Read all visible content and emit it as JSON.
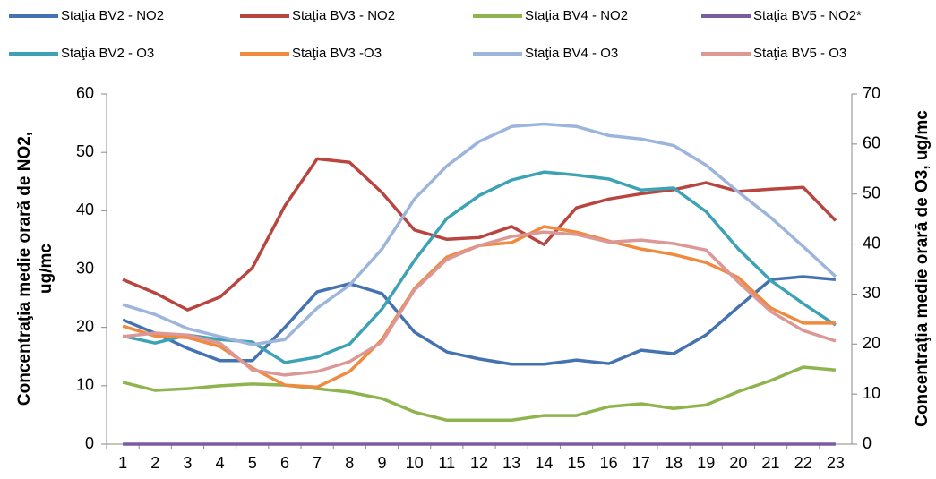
{
  "chart_data": {
    "type": "line",
    "ylabel": [
      "Concentraţia medie orară de NO2,",
      "ug/mc"
    ],
    "y2label": "Concentraţia medie orară de O3, ug/mc",
    "categories": [
      1,
      2,
      3,
      4,
      5,
      6,
      7,
      8,
      9,
      10,
      11,
      12,
      13,
      14,
      15,
      16,
      17,
      18,
      19,
      20,
      21,
      22,
      23
    ],
    "ylim": [
      0,
      60
    ],
    "yticks": [
      0,
      10,
      20,
      30,
      40,
      50,
      60
    ],
    "y2lim": [
      0,
      70
    ],
    "y2ticks": [
      0,
      10,
      20,
      30,
      40,
      50,
      60,
      70
    ],
    "grid": false,
    "legend": "top",
    "series": [
      {
        "name": "Staţia BV2 - NO2",
        "color": "#4572b0",
        "values": [
          21.3,
          19,
          16.4,
          14.3,
          14.3,
          20,
          26.1,
          27.5,
          25.8,
          19.2,
          15.8,
          14.6,
          13.7,
          13.7,
          14.4,
          13.8,
          16.1,
          15.5,
          18.7,
          23.5,
          28.2,
          28.7,
          28.2
        ]
      },
      {
        "name": "Staţia BV3 - NO2",
        "color": "#b8453f",
        "values": [
          28.2,
          25.9,
          23,
          25.2,
          30.2,
          40.8,
          48.9,
          48.3,
          43.1,
          36.7,
          35.1,
          35.4,
          37.3,
          34.2,
          40.5,
          42,
          42.9,
          43.6,
          44.8,
          43.3,
          43.7,
          44,
          38.3
        ]
      },
      {
        "name": "Staţia BV4 - NO2",
        "color": "#8fb34d",
        "values": [
          10.6,
          9.2,
          9.5,
          10,
          10.3,
          10.1,
          9.5,
          8.9,
          7.8,
          5.5,
          4.1,
          4.1,
          4.1,
          4.9,
          4.9,
          6.4,
          6.9,
          6.1,
          6.7,
          9,
          10.9,
          13.2,
          12.7
        ]
      },
      {
        "name": "Staţia BV5 - NO2*",
        "color": "#7a5d9e",
        "values": [
          0,
          0,
          0,
          0,
          0,
          0,
          0,
          0,
          0,
          0,
          0,
          0,
          0,
          0,
          0,
          0,
          0,
          0,
          0,
          0,
          0,
          0,
          0
        ]
      },
      {
        "name": "Staţia BV2 - O3",
        "color": "#3ea2b5",
        "axis": "y2",
        "values": [
          21.6,
          20.2,
          21.8,
          20.9,
          20.4,
          16.3,
          17.4,
          20,
          27,
          36.7,
          45.1,
          49.7,
          52.8,
          54.4,
          53.8,
          53,
          50.8,
          51.2,
          46.5,
          39,
          32.7,
          28.1,
          23.8
        ]
      },
      {
        "name": "Staţia BV3 -O3",
        "color": "#ef8a3f",
        "axis": "y2",
        "values": [
          23.6,
          21.6,
          21.3,
          19.5,
          15.2,
          11.8,
          11.4,
          14.5,
          20.9,
          31.1,
          37.4,
          39.7,
          40.3,
          43.5,
          42.4,
          40.6,
          39,
          37.9,
          36.3,
          33.3,
          27.2,
          24.2,
          24.2
        ]
      },
      {
        "name": "Staţia BV4 - O3",
        "color": "#9db5dc",
        "axis": "y2",
        "values": [
          27.9,
          25.9,
          23.1,
          21.5,
          19.9,
          20.9,
          27.2,
          31.8,
          39,
          49,
          55.6,
          60.5,
          63.5,
          64,
          63.5,
          61.7,
          61,
          59.7,
          55.8,
          50.4,
          45.3,
          39.5,
          33.5
        ]
      },
      {
        "name": "Staţia BV5 - O3",
        "color": "#dc9896",
        "axis": "y2",
        "values": [
          21.5,
          22.2,
          21.8,
          20.2,
          14.8,
          13.8,
          14.5,
          16.5,
          20.4,
          30.8,
          36.9,
          39.7,
          41.5,
          42.4,
          41.9,
          40.4,
          40.8,
          40.1,
          38.8,
          32.4,
          26.5,
          22.7,
          20.6
        ]
      }
    ]
  }
}
